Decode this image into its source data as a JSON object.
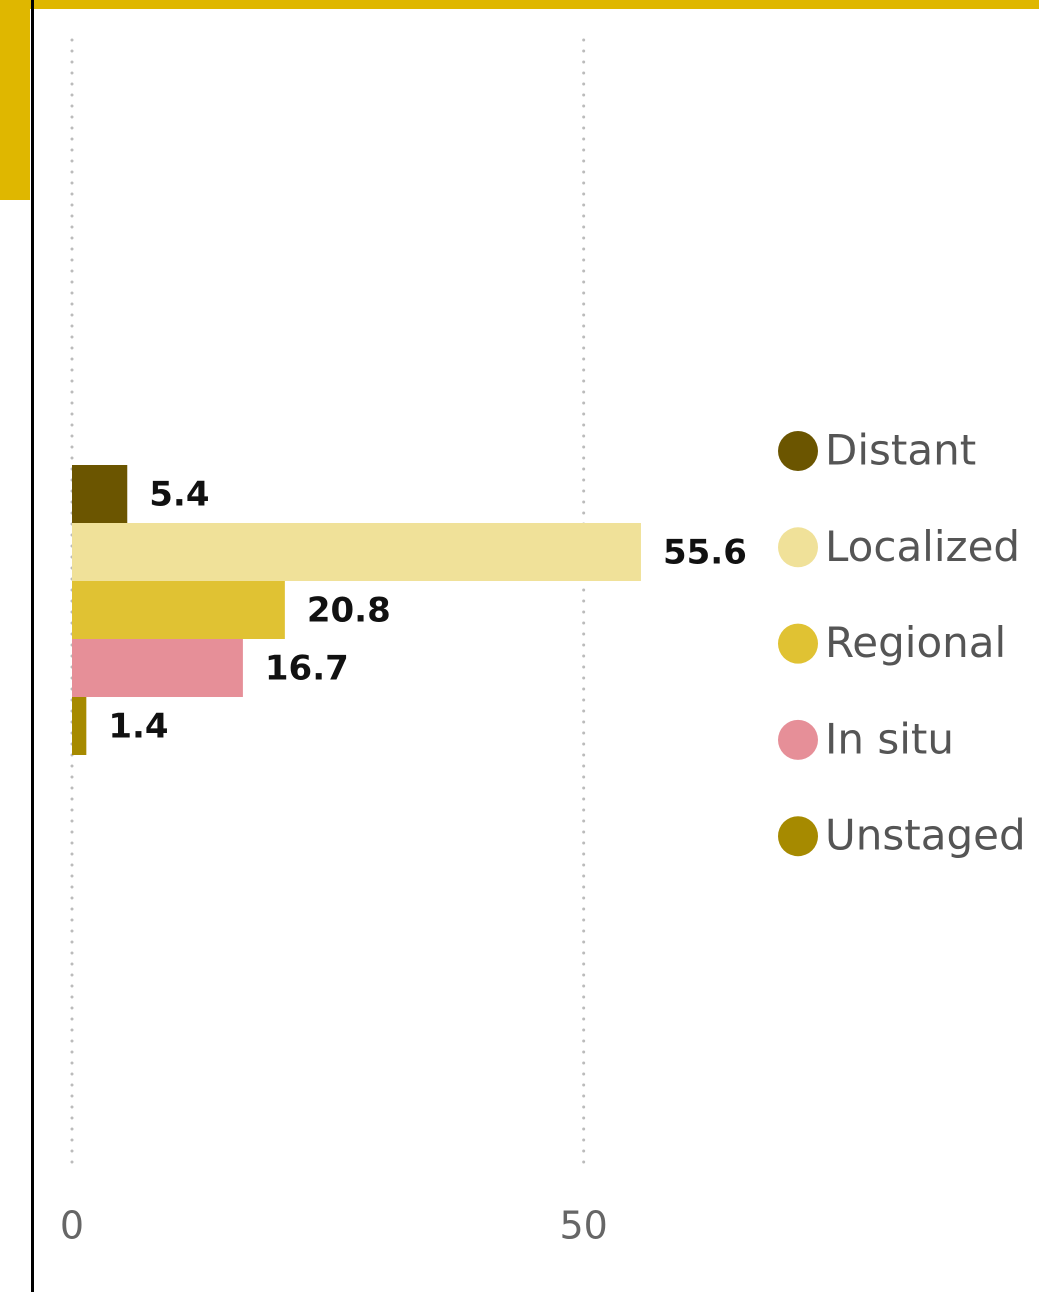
{
  "chart_data": {
    "type": "bar",
    "orientation": "horizontal",
    "series": [
      {
        "name": "Distant",
        "color": "#6b5500",
        "values": [
          5.4
        ]
      },
      {
        "name": "Localized",
        "color": "#f0e199",
        "values": [
          55.6
        ]
      },
      {
        "name": "Regional",
        "color": "#e0c233",
        "values": [
          20.8
        ]
      },
      {
        "name": "In situ",
        "color": "#e68f98",
        "values": [
          16.7
        ]
      },
      {
        "name": "Unstaged",
        "color": "#a68a00",
        "values": [
          1.4
        ]
      }
    ],
    "xlim": [
      0,
      60
    ],
    "xticks": [
      0,
      50
    ],
    "grid": true,
    "legend": "right"
  }
}
